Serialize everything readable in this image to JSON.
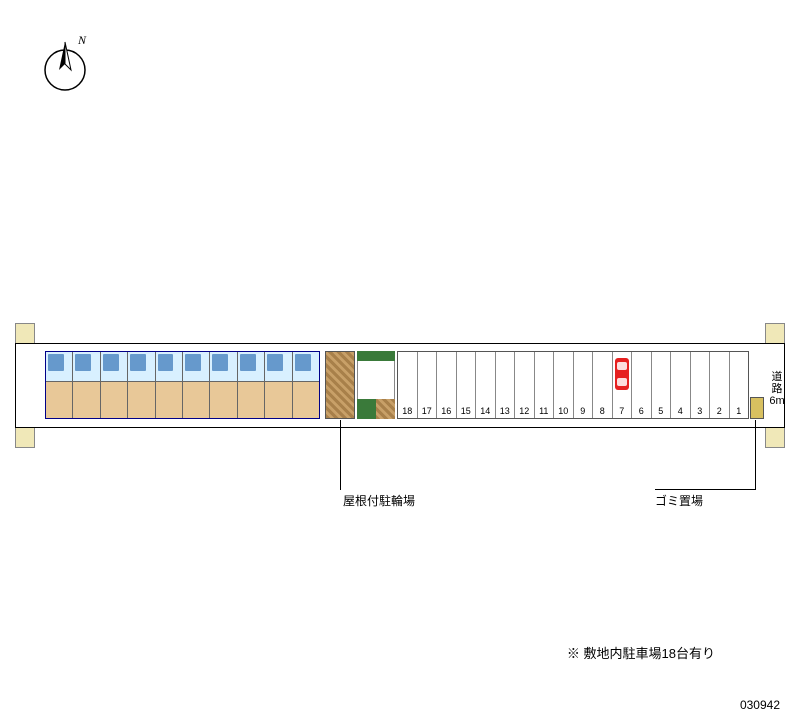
{
  "compass": {
    "north_letter": "N"
  },
  "plan": {
    "building": {
      "unit_count": 10,
      "unit_top_color": "#d8f0ff",
      "unit_bottom_color": "#e8c898",
      "balcony_accent": "#6699cc"
    },
    "bike_parking": {
      "label": "屋根付駐輪場",
      "fill_a": "#a8804a",
      "fill_b": "#c8a068"
    },
    "green": {
      "color": "#3a7a3a"
    },
    "parking": {
      "slot_count": 18,
      "slot_numbers": [
        1,
        2,
        3,
        4,
        5,
        6,
        7,
        8,
        9,
        10,
        11,
        12,
        13,
        14,
        15,
        16,
        17,
        18
      ],
      "car_in_slot": 7,
      "car_color": "#e62020"
    },
    "trash": {
      "label": "ゴミ置場",
      "fill": "#d8c060"
    },
    "road": {
      "label_line1": "道路",
      "label_line2": "6m"
    },
    "boundary_fill": "#f0e8b8"
  },
  "note": "※ 敷地内駐車場18台有り",
  "doc_id": "030942",
  "colors": {
    "background": "#ffffff",
    "line": "#000000",
    "subline": "#888888"
  }
}
